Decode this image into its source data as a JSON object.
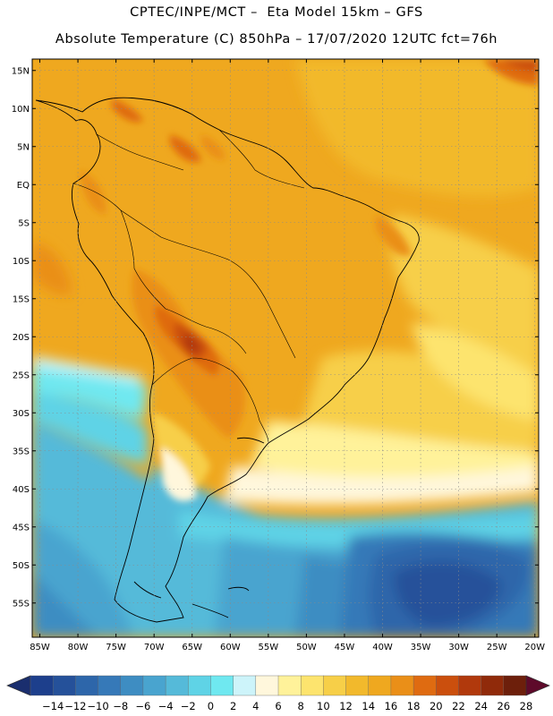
{
  "header": {
    "line1": "CPTEC/INPE/MCT –  Eta Model 15km – GFS",
    "line2": "Absolute Temperature (C) 850hPa – 17/07/2020 12UTC fct=76h"
  },
  "axes": {
    "lat_labels": [
      "15N",
      "10N",
      "5N",
      "EQ",
      "5S",
      "10S",
      "15S",
      "20S",
      "25S",
      "30S",
      "35S",
      "40S",
      "45S",
      "50S",
      "55S"
    ],
    "lon_labels": [
      "85W",
      "80W",
      "75W",
      "70W",
      "65W",
      "60W",
      "55W",
      "50W",
      "45W",
      "40W",
      "35W",
      "30W",
      "25W",
      "20W"
    ]
  },
  "colorbar": {
    "labels": [
      "-14",
      "-12",
      "-10",
      "-8",
      "-6",
      "-4",
      "-2",
      "0",
      "2",
      "4",
      "6",
      "8",
      "10",
      "12",
      "14",
      "16",
      "18",
      "20",
      "22",
      "24",
      "26",
      "28"
    ],
    "colors": [
      "#1d3f8c",
      "#25519a",
      "#2d66aa",
      "#3679b8",
      "#3e8dc2",
      "#49a4cf",
      "#55bad9",
      "#5fd3e6",
      "#6fe8f0",
      "#cdf4fa",
      "#fff7dc",
      "#fff29a",
      "#fde46e",
      "#f7cf48",
      "#f2b92c",
      "#efa81f",
      "#ea8f18",
      "#df6b11",
      "#cb4f0d",
      "#b1390c",
      "#902a0a",
      "#6d1f0b"
    ],
    "low_arrow_color": "#1a2e6e",
    "high_arrow_color": "#5e0a2a"
  },
  "chart_data": {
    "type": "heatmap",
    "title": "Absolute Temperature (C) 850hPa – 17/07/2020 12UTC fct=76h",
    "lon_range": [
      -86,
      -19.5
    ],
    "lat_range": [
      -59.5,
      16.5
    ],
    "units": "degC",
    "levels": [
      -14,
      -12,
      -10,
      -8,
      -6,
      -4,
      -2,
      0,
      2,
      4,
      6,
      8,
      10,
      12,
      14,
      16,
      18,
      20,
      22,
      24,
      26,
      28
    ]
  }
}
